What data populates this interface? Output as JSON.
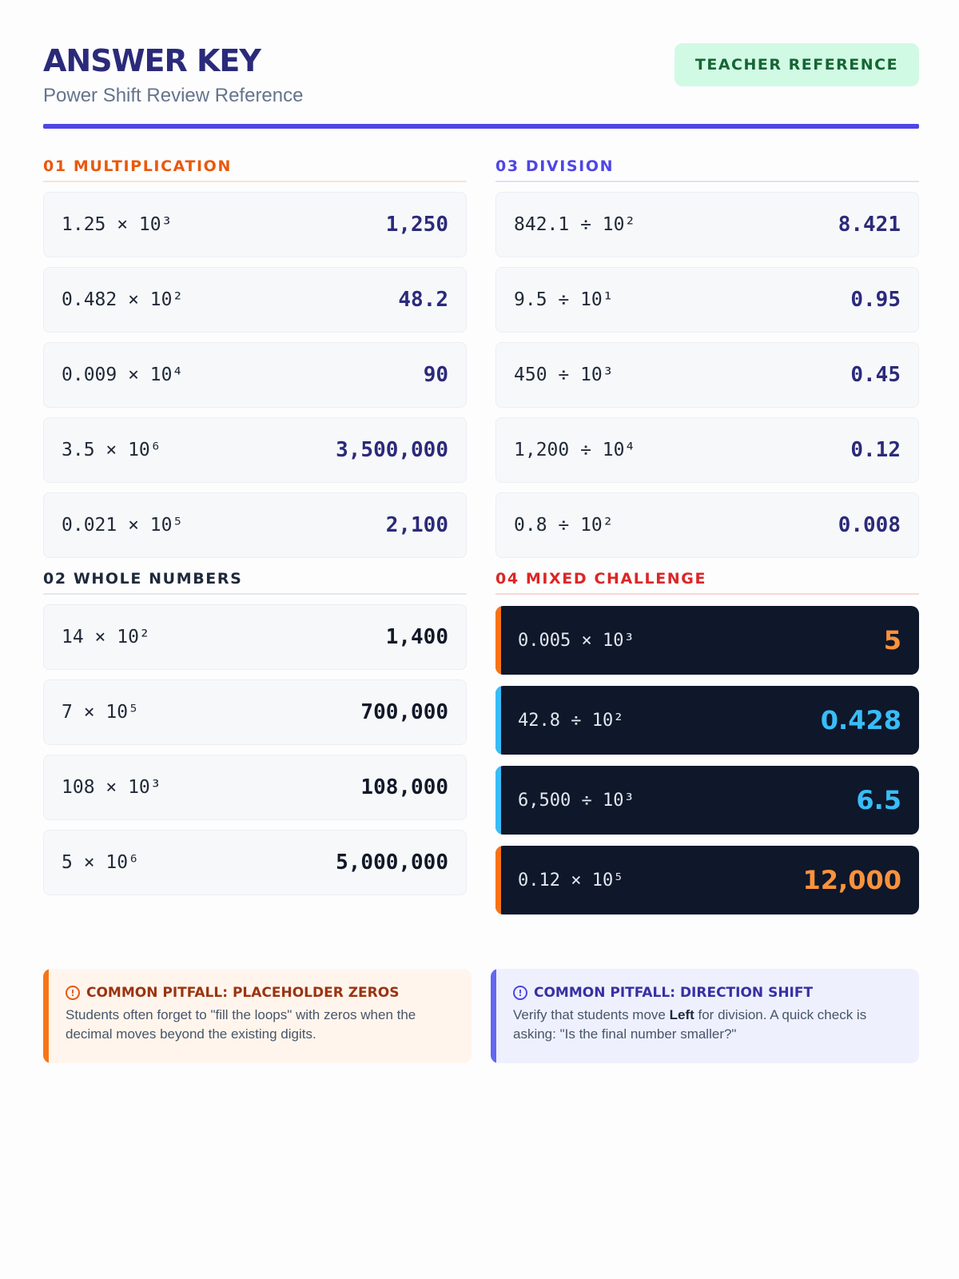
{
  "header": {
    "title": "ANSWER KEY",
    "subtitle": "Power Shift Review Reference",
    "badge": "TEACHER REFERENCE"
  },
  "colors": {
    "accent": "#4f46e5",
    "orange": "#ea580c",
    "red": "#dc2626",
    "sky": "#38bdf8",
    "dark_card": "#0f172a"
  },
  "sections": {
    "multiplication": {
      "heading": "01 MULTIPLICATION",
      "rows": [
        {
          "expr": "1.25 × 10³",
          "answer": "1,250"
        },
        {
          "expr": "0.482 × 10²",
          "answer": "48.2"
        },
        {
          "expr": "0.009 × 10⁴",
          "answer": "90"
        },
        {
          "expr": "3.5 × 10⁶",
          "answer": "3,500,000"
        },
        {
          "expr": "0.021 × 10⁵",
          "answer": "2,100"
        }
      ]
    },
    "whole_numbers": {
      "heading": "02 WHOLE NUMBERS",
      "rows": [
        {
          "expr": "14 × 10²",
          "answer": "1,400"
        },
        {
          "expr": "7 × 10⁵",
          "answer": "700,000"
        },
        {
          "expr": "108 × 10³",
          "answer": "108,000"
        },
        {
          "expr": "5 × 10⁶",
          "answer": "5,000,000"
        }
      ]
    },
    "division": {
      "heading": "03 DIVISION",
      "rows": [
        {
          "expr": "842.1 ÷ 10²",
          "answer": "8.421"
        },
        {
          "expr": "9.5 ÷ 10¹",
          "answer": "0.95"
        },
        {
          "expr": "450 ÷ 10³",
          "answer": "0.45"
        },
        {
          "expr": "1,200 ÷ 10⁴",
          "answer": "0.12"
        },
        {
          "expr": "0.8 ÷ 10²",
          "answer": "0.008"
        }
      ]
    },
    "mixed": {
      "heading": "04 MIXED CHALLENGE",
      "rows": [
        {
          "expr": "0.005 × 10³",
          "answer": "5",
          "accent": "#f97316"
        },
        {
          "expr": "42.8 ÷ 10²",
          "answer": "0.428",
          "accent": "#38bdf8"
        },
        {
          "expr": "6,500 ÷ 10³",
          "answer": "6.5",
          "accent": "#38bdf8"
        },
        {
          "expr": "0.12 × 10⁵",
          "answer": "12,000",
          "accent": "#f97316"
        }
      ]
    }
  },
  "callouts": {
    "zeros": {
      "title": "COMMON PITFALL: PLACEHOLDER ZEROS",
      "body": "Students often forget to \"fill the loops\" with zeros when the decimal moves beyond the existing digits.",
      "icon": "alert-circle-icon"
    },
    "direction": {
      "title": "COMMON PITFALL: DIRECTION SHIFT",
      "body_pre": "Verify that students move ",
      "body_bold": "Left",
      "body_post": " for division. A quick check is asking: \"Is the final number smaller?\"",
      "icon": "alert-circle-icon"
    }
  }
}
